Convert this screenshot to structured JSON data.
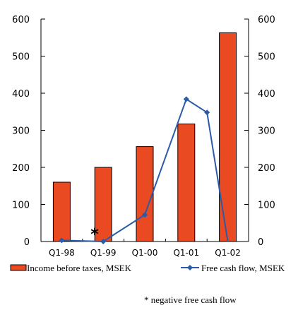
{
  "chart_data": {
    "type": "bar",
    "categories": [
      "Q1-98",
      "Q1-99",
      "Q1-00",
      "Q1-01",
      "Q1-02"
    ],
    "series": [
      {
        "name": "Income before taxes, MSEK",
        "type": "bar",
        "color": "#ea4a22",
        "values": [
          160,
          200,
          256,
          317,
          563
        ],
        "axis": "left"
      },
      {
        "name": "Free cash flow, MSEK",
        "type": "line",
        "color": "#2a5ba8",
        "x": [
          1,
          2,
          3,
          4,
          4.5,
          5
        ],
        "values": [
          3,
          0,
          72,
          384,
          348,
          0
        ],
        "axis": "right"
      }
    ],
    "ylim_left": [
      0,
      600
    ],
    "ylim_right": [
      0,
      600
    ],
    "yticks": [
      0,
      100,
      200,
      300,
      400,
      500,
      600
    ],
    "annotation": "*",
    "legend_position": "bottom",
    "grid": false
  },
  "footnote": "* negative free cash flow"
}
